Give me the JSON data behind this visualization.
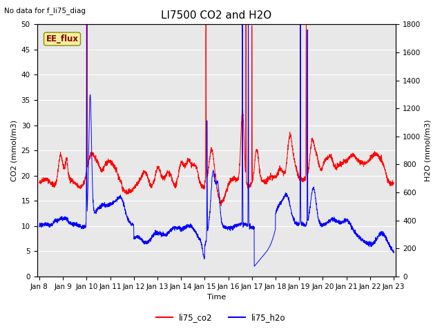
{
  "title": "LI7500 CO2 and H2O",
  "top_left_text": "No data for f_li75_diag",
  "box_label": "EE_flux",
  "xlabel": "Time",
  "ylabel_left": "CO2 (mmol/m3)",
  "ylabel_right": "H2O (mmol/m3)",
  "ylim_left": [
    0,
    50
  ],
  "ylim_right": [
    0,
    1800
  ],
  "xtick_labels": [
    "Jan 8",
    "Jan 9",
    "Jan 10",
    "Jan 11",
    "Jan 12",
    "Jan 13",
    "Jan 14",
    "Jan 15",
    "Jan 16",
    "Jan 17",
    "Jan 18",
    "Jan 19",
    "Jan 20",
    "Jan 21",
    "Jan 22",
    "Jan 23"
  ],
  "legend_entries": [
    "li75_co2",
    "li75_h2o"
  ],
  "bg_color": "#e8e8e8",
  "title_fontsize": 11,
  "label_fontsize": 8,
  "tick_fontsize": 7.5
}
